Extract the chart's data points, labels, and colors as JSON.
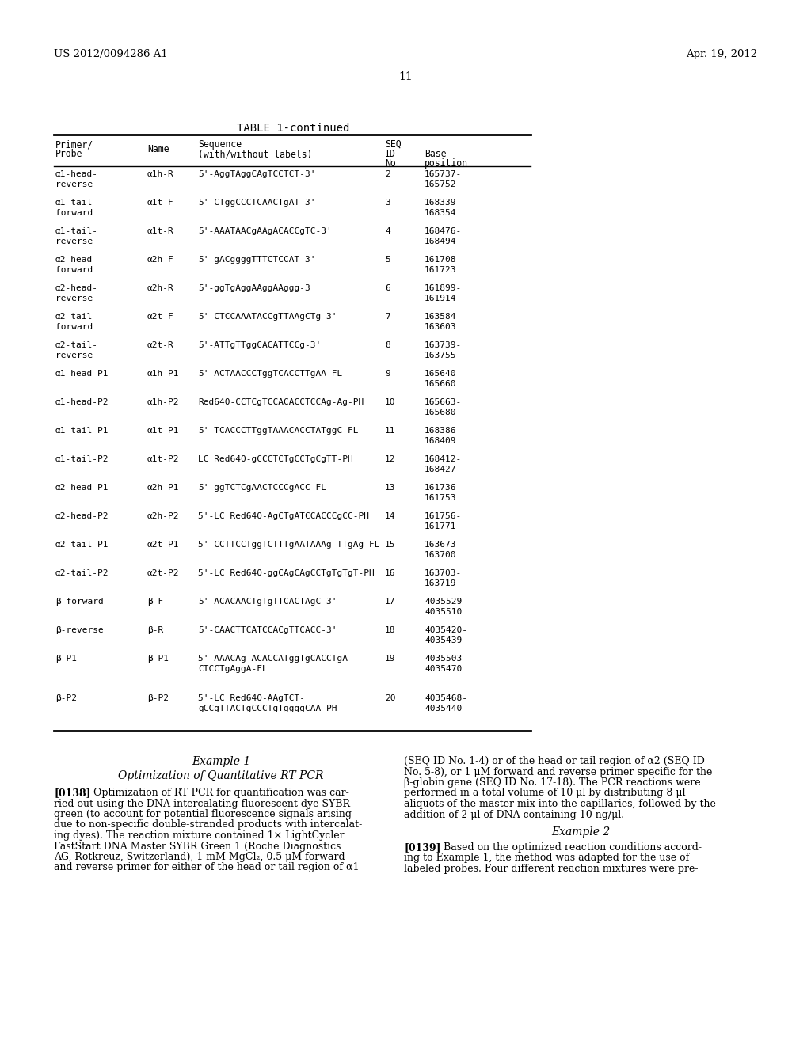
{
  "header_left": "US 2012/0094286 A1",
  "header_right": "Apr. 19, 2012",
  "page_number": "11",
  "table_title": "TABLE 1-continued",
  "table_rows": [
    [
      "α1-head-\nreverse",
      "α1h-R",
      "5'-AggTAggCAgTCCTCT-3'",
      "2",
      "165737-",
      "165752"
    ],
    [
      "α1-tail-\nforward",
      "α1t-F",
      "5'-CTggCCCTCAACTgAT-3'",
      "3",
      "168339-",
      "168354"
    ],
    [
      "α1-tail-\nreverse",
      "α1t-R",
      "5'-AAATAACgAAgACACCgTC-3'",
      "4",
      "168476-",
      "168494"
    ],
    [
      "α2-head-\nforward",
      "α2h-F",
      "5'-gACggggTTTCTCCAT-3'",
      "5",
      "161708-",
      "161723"
    ],
    [
      "α2-head-\nreverse",
      "α2h-R",
      "5'-ggTgAggAAggAAggg-3",
      "6",
      "161899-",
      "161914"
    ],
    [
      "α2-tail-\nforward",
      "α2t-F",
      "5'-CTCCAAATACCgTTAAgCTg-3'",
      "7",
      "163584-",
      "163603"
    ],
    [
      "α2-tail-\nreverse",
      "α2t-R",
      "5'-ATTgTTggCACATTCCg-3'",
      "8",
      "163739-",
      "163755"
    ],
    [
      "α1-head-P1",
      "α1h-P1",
      "5'-ACTAACCCTggTCACCTTgAA-FL",
      "9",
      "165640-",
      "165660"
    ],
    [
      "α1-head-P2",
      "α1h-P2",
      "Red640-CCTCgTCCACACCTCCAg-Ag-PH",
      "10",
      "165663-",
      "165680"
    ],
    [
      "α1-tail-P1",
      "α1t-P1",
      "5'-TCACCCTTggTAAACACCTATggC-FL",
      "11",
      "168386-",
      "168409"
    ],
    [
      "α1-tail-P2",
      "α1t-P2",
      "LC Red640-gCCCTCTgCCTgCgTT-PH",
      "12",
      "168412-",
      "168427"
    ],
    [
      "α2-head-P1",
      "α2h-P1",
      "5'-ggTCTCgAACTCCCgACC-FL",
      "13",
      "161736-",
      "161753"
    ],
    [
      "α2-head-P2",
      "α2h-P2",
      "5'-LC Red640-AgCTgATCCACCCgCC-PH",
      "14",
      "161756-",
      "161771"
    ],
    [
      "α2-tail-P1",
      "α2t-P1",
      "5'-CCTTCCTggTCTTTgAATAAAg TTgAg-FL",
      "15",
      "163673-",
      "163700"
    ],
    [
      "α2-tail-P2",
      "α2t-P2",
      "5'-LC Red640-ggCAgCAgCCTgTgTgT-PH",
      "16",
      "163703-",
      "163719"
    ],
    [
      "β-forward",
      "β-F",
      "5'-ACACAACTgTgTTCACTAgC-3'",
      "17",
      "4035529-",
      "4035510"
    ],
    [
      "β-reverse",
      "β-R",
      "5'-CAACTTCATCCACgTTCACC-3'",
      "18",
      "4035420-",
      "4035439"
    ],
    [
      "β-P1",
      "β-P1",
      "5'-AAACAg ACACCATggTgCACCTgA-\nCTCCTgAggA-FL",
      "19",
      "4035503-",
      "4035470"
    ],
    [
      "β-P2",
      "β-P2",
      "5'-LC Red640-AAgTCT-\ngCCgTTACTgCCCTgTggggCAA-PH",
      "20",
      "4035468-",
      "4035440"
    ]
  ],
  "ex1_title": "Example 1",
  "ex1_subtitle": "Optimization of Quantitative RT PCR",
  "ex1_lines": [
    "[0138]   Optimization of RT PCR for quantification was car-",
    "ried out using the DNA-intercalating fluorescent dye SYBR-",
    "green (to account for potential fluorescence signals arising",
    "due to non-specific double-stranded products with intercalat-",
    "ing dyes). The reaction mixture contained 1× LightCycler",
    "FastStart DNA Master SYBR Green 1 (Roche Diagnostics",
    "AG, Rotkreuz, Switzerland), 1 mM MgCl₂, 0.5 μM forward",
    "and reverse primer for either of the head or tail region of α1"
  ],
  "right_lines_top": [
    "(SEQ ID No. 1-4) or of the head or tail region of α2 (SEQ ID",
    "No. 5-8), or 1 μM forward and reverse primer specific for the",
    "β-globin gene (SEQ ID No. 17-18). The PCR reactions were",
    "performed in a total volume of 10 μl by distributing 8 μl",
    "aliquots of the master mix into the capillaries, followed by the",
    "addition of 2 μl of DNA containing 10 ng/μl."
  ],
  "ex2_title": "Example 2",
  "ex2_lines": [
    "[0139]   Based on the optimized reaction conditions accord-",
    "ing to Example 1, the method was adapted for the use of",
    "labeled probes. Four different reaction mixtures were pre-"
  ],
  "bg_color": "#ffffff"
}
